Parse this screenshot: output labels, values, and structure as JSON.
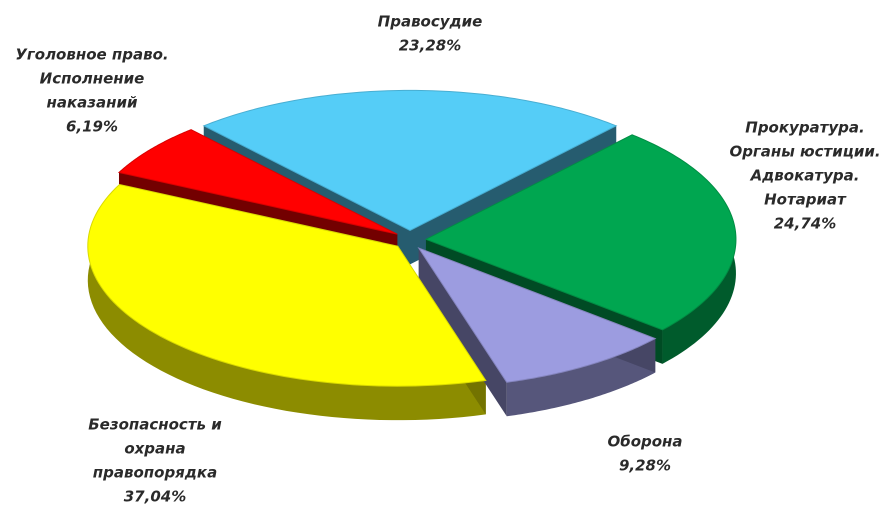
{
  "chart_data": {
    "type": "pie",
    "categories": [
      [
        "Правосудие"
      ],
      [
        "Прокуратура.",
        "Органы юстиции.",
        "Адвокатура.",
        "Нотариат"
      ],
      [
        "Оборона"
      ],
      [
        "Безопасность и",
        "охрана",
        "правопорядка"
      ],
      [
        "Уголовное право.",
        "Исполнение",
        "наказаний"
      ]
    ],
    "values": [
      23.28,
      24.74,
      9.28,
      37.04,
      6.19
    ],
    "value_labels": [
      "23,28%",
      "24,74%",
      "9,28%",
      "37,04%",
      "6,19%"
    ],
    "colors": [
      "#55cdf7",
      "#00a650",
      "#9c9ce0",
      "#ffff00",
      "#ff0000"
    ]
  }
}
